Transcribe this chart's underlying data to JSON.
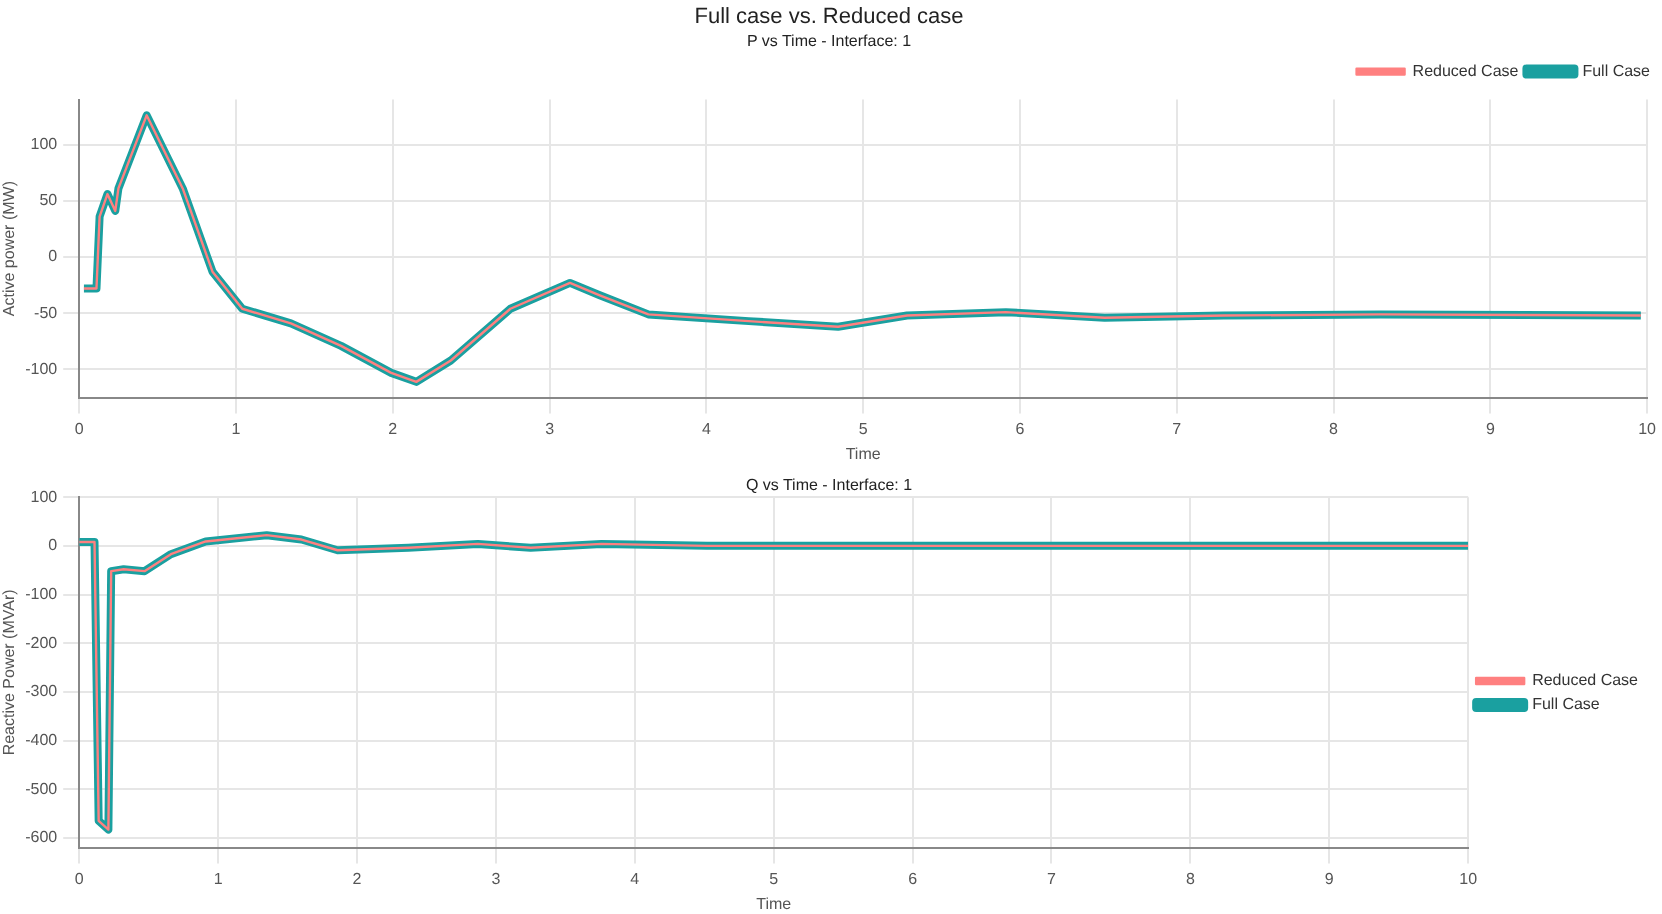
{
  "chart_data": [
    {
      "type": "line",
      "title": "Full case vs. Reduced case",
      "subtitle": "P vs Time - Interface: 1",
      "xlabel": "Time",
      "ylabel": "Active power (MW)",
      "x": [
        0.03,
        0.11,
        0.13,
        0.18,
        0.23,
        0.25,
        0.43,
        0.66,
        0.85,
        1.04,
        1.35,
        1.67,
        1.99,
        2.15,
        2.37,
        2.75,
        3.13,
        3.32,
        3.63,
        4.27,
        4.84,
        5.28,
        5.91,
        6.54,
        7.3,
        8.3,
        9.96
      ],
      "series": [
        {
          "name": "Full Case",
          "color": "#1aa0a0",
          "values": [
            -28,
            -28,
            36,
            56,
            41,
            61,
            126,
            61,
            -13,
            -46,
            -59,
            -79,
            -103,
            -111,
            -92,
            -46,
            -23,
            -34,
            -51,
            -57,
            -62,
            -52,
            -49,
            -54,
            -52,
            -51,
            -52
          ]
        },
        {
          "name": "Reduced Case",
          "color": "#ff8080",
          "values": [
            -28,
            -28,
            36,
            56,
            41,
            61,
            126,
            61,
            -13,
            -46,
            -59,
            -79,
            -103,
            -111,
            -92,
            -46,
            -23,
            -34,
            -51,
            -57,
            -62,
            -52,
            -49,
            -54,
            -52,
            -51,
            -52
          ]
        }
      ],
      "xlim": [
        0,
        10
      ],
      "xticks": [
        0,
        1,
        2,
        3,
        4,
        5,
        6,
        7,
        8,
        9,
        10
      ],
      "ylim": [
        -125,
        140
      ],
      "yticks": [
        -100,
        -50,
        0,
        50,
        100
      ],
      "grid": true,
      "legend": "top right"
    },
    {
      "type": "line",
      "title": "Q vs Time - Interface: 1",
      "xlabel": "Time",
      "ylabel": "Reactive Power (MVAr)",
      "x": [
        0,
        0.11,
        0.14,
        0.21,
        0.23,
        0.32,
        0.47,
        0.66,
        0.91,
        1.35,
        1.6,
        1.86,
        2.37,
        2.87,
        3.25,
        3.76,
        4.52,
        10
      ],
      "series": [
        {
          "name": "Full Case",
          "color": "#1aa0a0",
          "values": [
            8,
            8,
            -565,
            -583,
            -52,
            -48,
            -52,
            -17,
            9,
            22,
            13,
            -9,
            -4,
            4,
            -4,
            4,
            0,
            0
          ]
        },
        {
          "name": "Reduced Case",
          "color": "#ff8080",
          "values": [
            8,
            8,
            -565,
            -583,
            -52,
            -48,
            -52,
            -17,
            9,
            22,
            13,
            -9,
            -4,
            4,
            -4,
            4,
            0,
            0
          ]
        }
      ],
      "xlim": [
        0,
        10
      ],
      "xticks": [
        0,
        1,
        2,
        3,
        4,
        5,
        6,
        7,
        8,
        9,
        10
      ],
      "ylim": [
        -620,
        100
      ],
      "yticks": [
        -600,
        -500,
        -400,
        -300,
        -200,
        -100,
        0,
        100
      ],
      "grid": true,
      "legend": "right"
    }
  ]
}
